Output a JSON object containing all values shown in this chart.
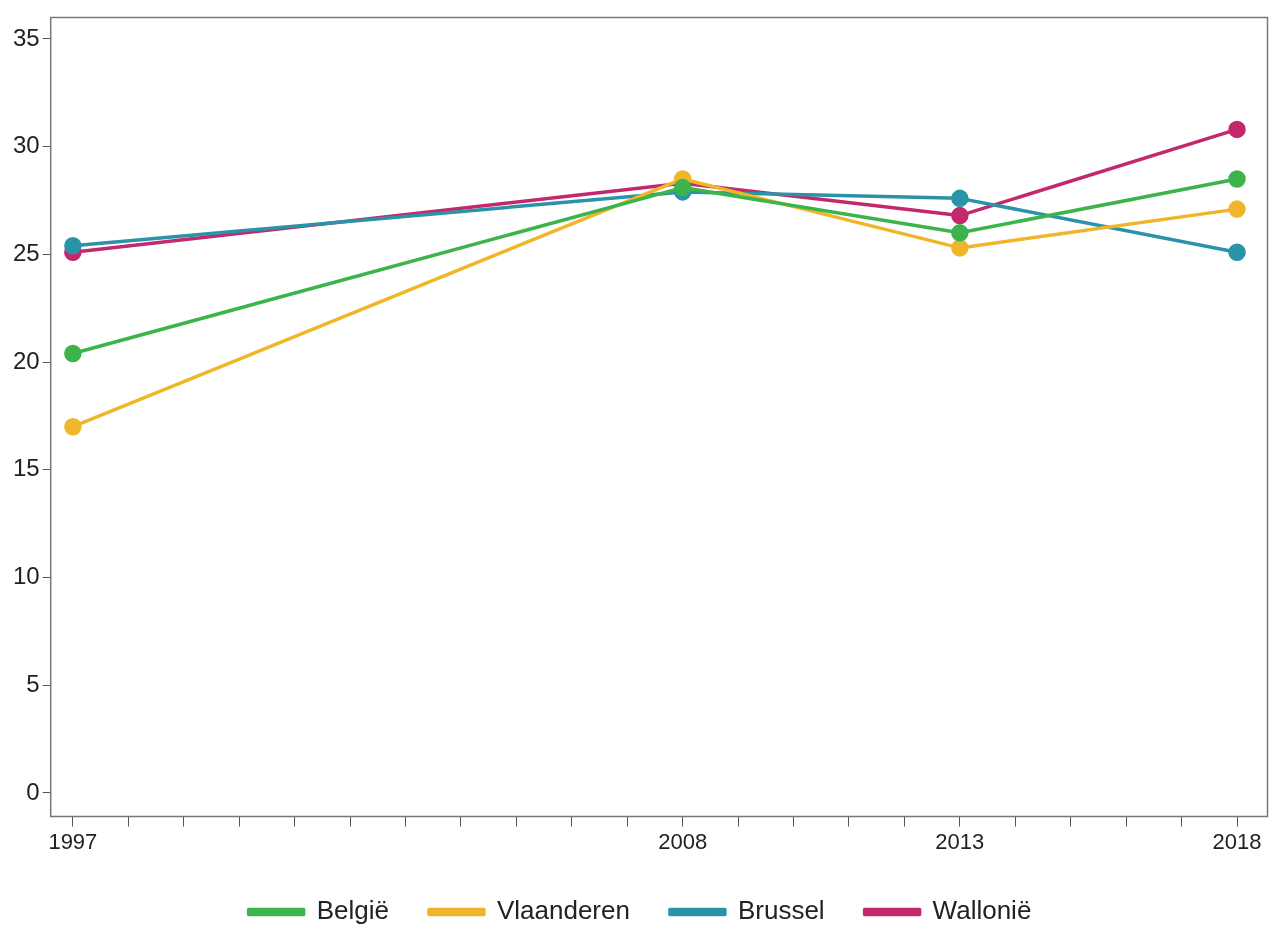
{
  "chart_data": {
    "type": "line",
    "x": [
      1997,
      2008,
      2013,
      2018
    ],
    "series": [
      {
        "name": "België",
        "color": "#3cb44b",
        "values": [
          20.4,
          28.1,
          26.0,
          28.5
        ]
      },
      {
        "name": "Vlaanderen",
        "color": "#f0b62a",
        "values": [
          17.0,
          28.5,
          25.3,
          27.1
        ]
      },
      {
        "name": "Brussel",
        "color": "#2a93a8",
        "values": [
          25.4,
          27.9,
          27.6,
          25.1
        ]
      },
      {
        "name": "Wallonië",
        "color": "#c4286c",
        "values": [
          25.1,
          28.3,
          26.8,
          30.8
        ]
      }
    ],
    "xlim": [
      1996.6,
      2018.55
    ],
    "xticks": [
      1997,
      {
        "value": 1998,
        "label": null
      },
      {
        "value": 1999,
        "label": null
      },
      {
        "value": 2000,
        "label": null
      },
      {
        "value": 2001,
        "label": null
      },
      {
        "value": 2002,
        "label": null
      },
      {
        "value": 2003,
        "label": null
      },
      {
        "value": 2004,
        "label": null
      },
      {
        "value": 2005,
        "label": null
      },
      {
        "value": 2006,
        "label": null
      },
      {
        "value": 2007,
        "label": null
      },
      2008,
      {
        "value": 2009,
        "label": null
      },
      {
        "value": 2010,
        "label": null
      },
      {
        "value": 2011,
        "label": null
      },
      {
        "value": 2012,
        "label": null
      },
      2013,
      {
        "value": 2014,
        "label": null
      },
      {
        "value": 2015,
        "label": null
      },
      {
        "value": 2016,
        "label": null
      },
      {
        "value": 2017,
        "label": null
      },
      2018
    ],
    "ylim": [
      -1.1,
      36
    ],
    "yticks": [
      0,
      5,
      10,
      15,
      20,
      25,
      30,
      35
    ],
    "grid": false,
    "legend": "bottom",
    "marker": "circle",
    "line_style": "solid"
  }
}
